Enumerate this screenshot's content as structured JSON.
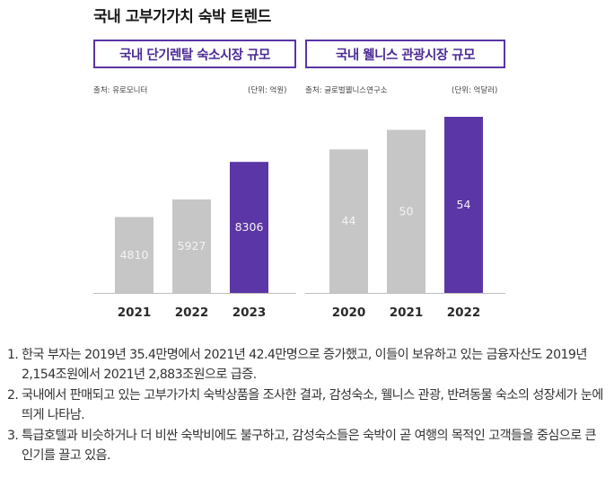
{
  "title": "국내 고부가가치 숙박 트렌드",
  "colors": {
    "bar_gray": "#c6c6c6",
    "bar_highlight": "#5b36a6",
    "accent": "#4b2a96",
    "label_light": "#f3f3f3"
  },
  "chart_data": [
    {
      "type": "bar",
      "title": "국내 단기렌탈 숙소시장 규모",
      "source": "출처: 유로모니터",
      "unit": "(단위: 억원)",
      "categories": [
        "2021",
        "2022",
        "2023"
      ],
      "values": [
        4810,
        5927,
        8306
      ],
      "value_labels": [
        "4810",
        "5927",
        "8306"
      ],
      "highlight_index": 2,
      "ylim": [
        0,
        9000
      ]
    },
    {
      "type": "bar",
      "title": "국내 웰니스 관광시장 규모",
      "source": "출처: 글로벌웰니스연구소",
      "unit": "(단위: 억달러)",
      "categories": [
        "2020",
        "2021",
        "2022"
      ],
      "values": [
        44,
        50,
        54
      ],
      "value_labels": [
        "44",
        "50",
        "54"
      ],
      "highlight_index": 2,
      "ylim": [
        0,
        54
      ]
    }
  ],
  "notes": [
    {
      "num": "1.",
      "text": "한국 부자는 2019년 35.4만명에서 2021년 42.4만명으로 증가했고, 이들이 보유하고 있는 금융자산도 2019년 2,154조원에서 2021년 2,883조원으로 급증."
    },
    {
      "num": "2.",
      "text": "국내에서 판매되고 있는 고부가가치 숙박상품을 조사한 결과, 감성숙소, 웰니스 관광, 반려동물 숙소의 성장세가 눈에 띄게 나타남."
    },
    {
      "num": "3.",
      "text": "특급호텔과 비슷하거나 더 비싼 숙박비에도 불구하고, 감성숙소들은 숙박이 곧 여행의 목적인 고객들을 중심으로 큰 인기를 끌고 있음."
    }
  ]
}
